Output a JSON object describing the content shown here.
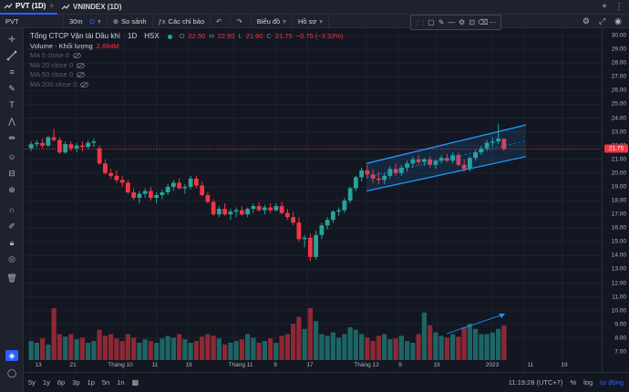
{
  "tabs": [
    {
      "label": "PVT (1D)",
      "active": true
    },
    {
      "label": "VNINDEX (1D)",
      "active": false
    }
  ],
  "toolbar": {
    "symbol": "PVT",
    "interval": "30m",
    "interval_d": "D",
    "compare": "So sánh",
    "indicators": "Các chỉ báo",
    "chart_type": "Biểu đồ",
    "profile": "Hồ sơ"
  },
  "legend": {
    "title": "Tổng CTCP Vận tải Dầu khí",
    "interval": "1D",
    "exchange": "HSX",
    "o_label": "O",
    "o_value": "22.50",
    "h_label": "H",
    "h_value": "22.50",
    "l_label": "L",
    "l_value": "21.60",
    "c_label": "C",
    "c_value": "21.75",
    "change": "−0.75 (−3.33%)",
    "volume_label": "Volume - Khối lượng",
    "volume_value": "2.894M",
    "ma": [
      "MA 5 close 0",
      "MA 20 close 0",
      "MA 50 close 0",
      "MA 200 close 0"
    ]
  },
  "price_axis": {
    "ticks": [
      "30.00",
      "29.00",
      "28.00",
      "27.00",
      "26.00",
      "25.00",
      "24.00",
      "23.00",
      "22.00",
      "21.00",
      "20.00",
      "19.00",
      "18.00",
      "17.00",
      "16.00",
      "15.00",
      "14.00",
      "13.00",
      "12.00",
      "11.00",
      "10.00",
      "9.00",
      "8.00",
      "7.00"
    ],
    "last_price": "21.75"
  },
  "time_axis": {
    "ticks": [
      "13",
      "21",
      "Tháng 10",
      "11",
      "19",
      "Tháng 11",
      "9",
      "17",
      "Tháng 12",
      "9",
      "19",
      "2023",
      "11",
      "19"
    ]
  },
  "bottom": {
    "ranges": [
      "5y",
      "1y",
      "6p",
      "3p",
      "1p",
      "5n",
      "1n"
    ],
    "clock": "11:19:28 (UTC+7)",
    "pct": "%",
    "log": "log",
    "auto": "tự động"
  },
  "colors": {
    "up": "#26a69a",
    "down": "#f23645",
    "channel": "#2196f3",
    "accent": "#2962ff"
  },
  "chart_data": {
    "type": "candlestick",
    "price_ylim": [
      7,
      30
    ],
    "candles": [
      [
        21.8,
        22.3,
        21.6,
        22.1
      ],
      [
        22.1,
        22.4,
        21.9,
        22.2
      ],
      [
        22.2,
        22.5,
        21.8,
        22.0
      ],
      [
        22.0,
        22.7,
        21.9,
        22.6
      ],
      [
        22.6,
        23.2,
        22.3,
        22.4
      ],
      [
        22.4,
        22.6,
        21.4,
        21.5
      ],
      [
        21.5,
        22.3,
        21.4,
        22.1
      ],
      [
        22.1,
        22.3,
        21.6,
        21.8
      ],
      [
        21.8,
        22.2,
        21.5,
        22.0
      ],
      [
        22.0,
        22.3,
        21.6,
        21.9
      ],
      [
        21.9,
        22.4,
        21.7,
        22.2
      ],
      [
        22.2,
        22.5,
        21.9,
        22.3
      ],
      [
        21.8,
        22.0,
        20.6,
        20.7
      ],
      [
        20.7,
        21.0,
        19.9,
        20.0
      ],
      [
        20.0,
        20.3,
        19.6,
        19.8
      ],
      [
        19.8,
        20.2,
        19.3,
        19.5
      ],
      [
        19.5,
        19.8,
        19.0,
        19.3
      ],
      [
        19.3,
        19.5,
        18.5,
        18.6
      ],
      [
        18.6,
        18.9,
        18.0,
        18.2
      ],
      [
        18.2,
        18.7,
        17.8,
        18.5
      ],
      [
        18.5,
        18.9,
        18.2,
        18.7
      ],
      [
        18.7,
        19.0,
        18.0,
        18.2
      ],
      [
        18.2,
        18.6,
        17.8,
        18.4
      ],
      [
        18.4,
        18.8,
        18.1,
        18.6
      ],
      [
        18.6,
        19.2,
        18.4,
        19.0
      ],
      [
        19.0,
        19.5,
        18.7,
        19.3
      ],
      [
        19.3,
        19.6,
        18.8,
        18.9
      ],
      [
        18.9,
        19.2,
        18.5,
        19.0
      ],
      [
        19.0,
        19.8,
        18.8,
        19.6
      ],
      [
        19.6,
        19.8,
        18.9,
        19.1
      ],
      [
        19.1,
        19.4,
        18.3,
        18.4
      ],
      [
        18.4,
        18.6,
        17.8,
        17.9
      ],
      [
        17.9,
        18.1,
        16.9,
        17.0
      ],
      [
        17.0,
        17.6,
        16.8,
        17.4
      ],
      [
        17.4,
        17.8,
        16.9,
        17.0
      ],
      [
        17.0,
        17.4,
        16.6,
        17.2
      ],
      [
        17.2,
        17.5,
        16.8,
        17.3
      ],
      [
        17.3,
        17.6,
        16.9,
        17.0
      ],
      [
        17.0,
        17.5,
        16.8,
        17.4
      ],
      [
        17.4,
        17.8,
        17.1,
        17.6
      ],
      [
        17.6,
        17.9,
        17.2,
        17.3
      ],
      [
        17.3,
        17.7,
        17.0,
        17.5
      ],
      [
        17.5,
        17.8,
        17.1,
        17.3
      ],
      [
        17.3,
        17.8,
        17.2,
        17.6
      ],
      [
        17.6,
        17.9,
        17.0,
        17.1
      ],
      [
        17.1,
        17.4,
        16.6,
        16.8
      ],
      [
        16.8,
        17.2,
        16.2,
        16.4
      ],
      [
        16.4,
        16.8,
        15.0,
        15.2
      ],
      [
        15.2,
        15.5,
        14.6,
        15.3
      ],
      [
        15.3,
        15.6,
        13.6,
        13.9
      ],
      [
        13.9,
        15.8,
        13.7,
        15.5
      ],
      [
        15.5,
        16.4,
        15.2,
        16.2
      ],
      [
        16.2,
        16.8,
        15.9,
        16.6
      ],
      [
        16.6,
        17.3,
        16.4,
        17.2
      ],
      [
        17.2,
        17.5,
        16.9,
        17.3
      ],
      [
        17.3,
        18.2,
        17.1,
        18.0
      ],
      [
        18.0,
        19.0,
        17.8,
        18.9
      ],
      [
        18.9,
        19.8,
        18.7,
        19.7
      ],
      [
        19.7,
        20.4,
        19.4,
        20.2
      ],
      [
        20.2,
        20.6,
        19.6,
        19.9
      ],
      [
        19.9,
        20.3,
        19.3,
        19.6
      ],
      [
        19.6,
        20.1,
        19.2,
        19.5
      ],
      [
        19.5,
        20.0,
        19.2,
        19.8
      ],
      [
        19.8,
        20.5,
        19.6,
        20.3
      ],
      [
        20.3,
        20.7,
        19.8,
        20.0
      ],
      [
        20.0,
        20.6,
        19.8,
        20.4
      ],
      [
        20.4,
        20.9,
        20.1,
        20.7
      ],
      [
        20.7,
        21.2,
        20.4,
        21.0
      ],
      [
        21.0,
        21.3,
        20.6,
        20.8
      ],
      [
        20.8,
        21.1,
        20.5,
        21.0
      ],
      [
        21.0,
        21.2,
        20.4,
        20.6
      ],
      [
        20.6,
        21.0,
        20.3,
        20.9
      ],
      [
        20.9,
        21.3,
        20.7,
        21.1
      ],
      [
        21.1,
        21.4,
        20.8,
        20.9
      ],
      [
        20.9,
        21.5,
        20.7,
        21.3
      ],
      [
        21.3,
        21.5,
        20.5,
        20.6
      ],
      [
        20.6,
        21.0,
        20.1,
        20.3
      ],
      [
        20.3,
        21.2,
        20.1,
        21.1
      ],
      [
        21.1,
        21.7,
        20.9,
        21.5
      ],
      [
        21.5,
        22.0,
        21.3,
        21.8
      ],
      [
        21.8,
        22.4,
        21.6,
        22.2
      ],
      [
        22.2,
        22.6,
        21.9,
        22.3
      ],
      [
        22.3,
        23.6,
        22.1,
        22.5
      ],
      [
        22.5,
        22.5,
        21.6,
        21.75
      ]
    ],
    "volume_ylim": [
      0,
      1
    ],
    "volumes": [
      0.22,
      0.2,
      0.25,
      0.18,
      0.6,
      0.3,
      0.27,
      0.3,
      0.24,
      0.26,
      0.2,
      0.22,
      0.35,
      0.28,
      0.3,
      0.25,
      0.22,
      0.3,
      0.26,
      0.2,
      0.24,
      0.22,
      0.2,
      0.25,
      0.28,
      0.26,
      0.3,
      0.24,
      0.2,
      0.22,
      0.27,
      0.3,
      0.28,
      0.25,
      0.18,
      0.2,
      0.22,
      0.24,
      0.3,
      0.26,
      0.2,
      0.22,
      0.25,
      0.2,
      0.28,
      0.3,
      0.42,
      0.5,
      0.36,
      0.6,
      0.45,
      0.3,
      0.28,
      0.32,
      0.26,
      0.3,
      0.38,
      0.35,
      0.3,
      0.26,
      0.22,
      0.28,
      0.3,
      0.24,
      0.25,
      0.28,
      0.22,
      0.2,
      0.3,
      0.55,
      0.4,
      0.32,
      0.28,
      0.26,
      0.3,
      0.27,
      0.38,
      0.42,
      0.36,
      0.3,
      0.3,
      0.32,
      0.36,
      0.4
    ]
  }
}
